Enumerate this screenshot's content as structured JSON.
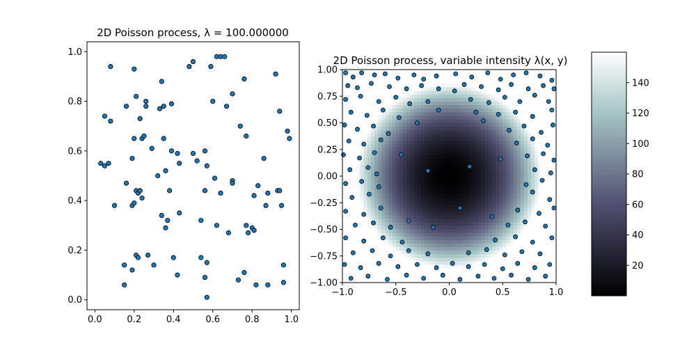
{
  "chart_data": [
    {
      "type": "scatter",
      "title": "2D Poisson process, λ = 100.000000",
      "xlim": [
        -0.04,
        1.04
      ],
      "ylim": [
        -0.04,
        1.04
      ],
      "x_ticks": [
        "0.0",
        "0.2",
        "0.4",
        "0.6",
        "0.8",
        "1.0"
      ],
      "y_ticks": [
        "0.0",
        "0.2",
        "0.4",
        "0.6",
        "0.8",
        "1.0"
      ],
      "marker_color": "#1f77b4",
      "marker_edge": "#000000",
      "points": [
        [
          0.03,
          0.55
        ],
        [
          0.05,
          0.74
        ],
        [
          0.05,
          0.54
        ],
        [
          0.07,
          0.55
        ],
        [
          0.08,
          0.94
        ],
        [
          0.08,
          0.72
        ],
        [
          0.1,
          0.38
        ],
        [
          0.15,
          0.14
        ],
        [
          0.15,
          0.06
        ],
        [
          0.16,
          0.78
        ],
        [
          0.16,
          0.47
        ],
        [
          0.19,
          0.57
        ],
        [
          0.19,
          0.38
        ],
        [
          0.19,
          0.12
        ],
        [
          0.2,
          0.93
        ],
        [
          0.2,
          0.39
        ],
        [
          0.2,
          0.65
        ],
        [
          0.21,
          0.82
        ],
        [
          0.21,
          0.44
        ],
        [
          0.21,
          0.18
        ],
        [
          0.22,
          0.43
        ],
        [
          0.22,
          0.17
        ],
        [
          0.23,
          0.73
        ],
        [
          0.23,
          0.44
        ],
        [
          0.24,
          0.65
        ],
        [
          0.24,
          0.41
        ],
        [
          0.25,
          0.66
        ],
        [
          0.26,
          0.78
        ],
        [
          0.26,
          0.8
        ],
        [
          0.27,
          0.18
        ],
        [
          0.29,
          0.61
        ],
        [
          0.3,
          0.14
        ],
        [
          0.32,
          0.5
        ],
        [
          0.33,
          0.77
        ],
        [
          0.34,
          0.88
        ],
        [
          0.34,
          0.34
        ],
        [
          0.35,
          0.78
        ],
        [
          0.35,
          0.65
        ],
        [
          0.36,
          0.52
        ],
        [
          0.36,
          0.29
        ],
        [
          0.37,
          0.32
        ],
        [
          0.38,
          0.44
        ],
        [
          0.39,
          0.79
        ],
        [
          0.39,
          0.6
        ],
        [
          0.4,
          0.17
        ],
        [
          0.42,
          0.59
        ],
        [
          0.42,
          0.1
        ],
        [
          0.43,
          0.55
        ],
        [
          0.43,
          0.35
        ],
        [
          0.48,
          0.94
        ],
        [
          0.5,
          0.96
        ],
        [
          0.5,
          0.59
        ],
        [
          0.52,
          0.56
        ],
        [
          0.54,
          0.32
        ],
        [
          0.54,
          0.17
        ],
        [
          0.56,
          0.6
        ],
        [
          0.56,
          0.44
        ],
        [
          0.56,
          0.09
        ],
        [
          0.57,
          0.54
        ],
        [
          0.57,
          0.15
        ],
        [
          0.57,
          0.01
        ],
        [
          0.59,
          0.94
        ],
        [
          0.6,
          0.8
        ],
        [
          0.61,
          0.49
        ],
        [
          0.62,
          0.98
        ],
        [
          0.62,
          0.3
        ],
        [
          0.64,
          0.43
        ],
        [
          0.64,
          0.98
        ],
        [
          0.66,
          0.98
        ],
        [
          0.67,
          0.78
        ],
        [
          0.68,
          0.27
        ],
        [
          0.7,
          0.83
        ],
        [
          0.7,
          0.48
        ],
        [
          0.7,
          0.47
        ],
        [
          0.73,
          0.08
        ],
        [
          0.74,
          0.7
        ],
        [
          0.76,
          0.89
        ],
        [
          0.76,
          0.11
        ],
        [
          0.77,
          0.66
        ],
        [
          0.77,
          0.3
        ],
        [
          0.78,
          0.27
        ],
        [
          0.8,
          0.29
        ],
        [
          0.81,
          0.42
        ],
        [
          0.81,
          0.28
        ],
        [
          0.82,
          0.06
        ],
        [
          0.83,
          0.46
        ],
        [
          0.86,
          0.57
        ],
        [
          0.87,
          0.38
        ],
        [
          0.88,
          0.43
        ],
        [
          0.88,
          0.06
        ],
        [
          0.92,
          0.91
        ],
        [
          0.93,
          0.44
        ],
        [
          0.94,
          0.44
        ],
        [
          0.94,
          0.76
        ],
        [
          0.95,
          0.38
        ],
        [
          0.96,
          0.14
        ],
        [
          0.96,
          0.07
        ],
        [
          0.98,
          0.68
        ],
        [
          0.99,
          0.65
        ]
      ]
    },
    {
      "type": "heatmap",
      "title": "2D Poisson process, variable intensity λ(x, y)",
      "colormap": "bone",
      "xlim": [
        -1.0,
        1.0
      ],
      "ylim": [
        -1.0,
        1.0
      ],
      "x_ticks": [
        "−1.0",
        "−0.5",
        "0.0",
        "0.5",
        "1.0"
      ],
      "y_ticks": [
        "1.00",
        "0.75",
        "0.50",
        "0.25",
        "0.00",
        "−0.25",
        "−0.50",
        "−0.75",
        "−1.00"
      ],
      "intensity_max": 160,
      "colorbar_ticks": [
        "140",
        "120",
        "100",
        "80",
        "60",
        "40",
        "20"
      ],
      "colorbar_range": [
        0,
        160
      ],
      "marker_color": "#1f77b4",
      "marker_edge": "#000000",
      "points": [
        [
          -0.97,
          0.97
        ],
        [
          -0.9,
          0.93
        ],
        [
          -0.82,
          0.97
        ],
        [
          -0.7,
          0.95
        ],
        [
          -0.6,
          0.96
        ],
        [
          -0.48,
          0.92
        ],
        [
          -0.33,
          0.95
        ],
        [
          -0.24,
          0.91
        ],
        [
          -0.12,
          0.94
        ],
        [
          0.06,
          0.96
        ],
        [
          0.21,
          0.93
        ],
        [
          0.36,
          0.97
        ],
        [
          0.48,
          0.91
        ],
        [
          0.6,
          0.95
        ],
        [
          0.72,
          0.97
        ],
        [
          0.85,
          0.94
        ],
        [
          0.96,
          0.9
        ],
        [
          -0.95,
          0.85
        ],
        [
          -0.86,
          0.83
        ],
        [
          -0.73,
          0.87
        ],
        [
          -0.56,
          0.84
        ],
        [
          -0.4,
          0.82
        ],
        [
          -0.26,
          0.85
        ],
        [
          -0.1,
          0.82
        ],
        [
          0.05,
          0.8
        ],
        [
          0.14,
          0.86
        ],
        [
          0.3,
          0.84
        ],
        [
          0.46,
          0.81
        ],
        [
          0.58,
          0.86
        ],
        [
          0.74,
          0.82
        ],
        [
          0.88,
          0.85
        ],
        [
          0.98,
          0.82
        ],
        [
          -0.97,
          0.72
        ],
        [
          -0.83,
          0.75
        ],
        [
          -0.66,
          0.7
        ],
        [
          -0.5,
          0.74
        ],
        [
          -0.37,
          0.68
        ],
        [
          -0.2,
          0.7
        ],
        [
          0.2,
          0.72
        ],
        [
          0.37,
          0.69
        ],
        [
          0.52,
          0.74
        ],
        [
          0.66,
          0.7
        ],
        [
          0.8,
          0.76
        ],
        [
          0.93,
          0.7
        ],
        [
          -0.92,
          0.6
        ],
        [
          -0.77,
          0.57
        ],
        [
          -0.62,
          0.62
        ],
        [
          -0.47,
          0.55
        ],
        [
          0.46,
          0.58
        ],
        [
          0.62,
          0.6
        ],
        [
          0.78,
          0.56
        ],
        [
          0.96,
          0.62
        ],
        [
          -0.98,
          0.48
        ],
        [
          -0.86,
          0.44
        ],
        [
          -0.71,
          0.47
        ],
        [
          -0.57,
          0.4
        ],
        [
          0.56,
          0.43
        ],
        [
          0.7,
          0.47
        ],
        [
          0.86,
          0.41
        ],
        [
          0.97,
          0.48
        ],
        [
          -0.94,
          0.33
        ],
        [
          -0.8,
          0.3
        ],
        [
          -0.64,
          0.34
        ],
        [
          0.63,
          0.31
        ],
        [
          0.78,
          0.35
        ],
        [
          0.92,
          0.29
        ],
        [
          -0.99,
          0.2
        ],
        [
          -0.84,
          0.17
        ],
        [
          -0.7,
          0.22
        ],
        [
          0.73,
          0.19
        ],
        [
          0.88,
          0.21
        ],
        [
          0.98,
          0.15
        ],
        [
          -0.93,
          0.06
        ],
        [
          -0.76,
          0.08
        ],
        [
          -0.68,
          0.02
        ],
        [
          0.8,
          0.06
        ],
        [
          0.95,
          0.03
        ],
        [
          -0.97,
          -0.07
        ],
        [
          -0.82,
          -0.05
        ],
        [
          -0.66,
          -0.1
        ],
        [
          0.72,
          -0.08
        ],
        [
          0.87,
          -0.04
        ],
        [
          -0.91,
          -0.2
        ],
        [
          -0.75,
          -0.17
        ],
        [
          0.78,
          -0.15
        ],
        [
          0.94,
          -0.22
        ],
        [
          -0.97,
          -0.33
        ],
        [
          -0.8,
          -0.36
        ],
        [
          -0.64,
          -0.3
        ],
        [
          0.64,
          -0.32
        ],
        [
          0.84,
          -0.35
        ],
        [
          0.98,
          -0.3
        ],
        [
          -0.88,
          -0.46
        ],
        [
          -0.71,
          -0.44
        ],
        [
          -0.55,
          -0.48
        ],
        [
          0.55,
          -0.46
        ],
        [
          0.71,
          -0.43
        ],
        [
          0.9,
          -0.47
        ],
        [
          -0.97,
          -0.58
        ],
        [
          -0.8,
          -0.61
        ],
        [
          -0.62,
          -0.58
        ],
        [
          -0.44,
          -0.62
        ],
        [
          0.43,
          -0.6
        ],
        [
          0.62,
          -0.57
        ],
        [
          0.78,
          -0.62
        ],
        [
          0.96,
          -0.58
        ],
        [
          -0.9,
          -0.72
        ],
        [
          -0.72,
          -0.7
        ],
        [
          -0.55,
          -0.75
        ],
        [
          -0.38,
          -0.7
        ],
        [
          -0.2,
          -0.73
        ],
        [
          0.18,
          -0.72
        ],
        [
          0.35,
          -0.69
        ],
        [
          0.52,
          -0.74
        ],
        [
          0.68,
          -0.71
        ],
        [
          0.85,
          -0.73
        ],
        [
          -0.98,
          -0.83
        ],
        [
          -0.83,
          -0.86
        ],
        [
          -0.66,
          -0.82
        ],
        [
          -0.48,
          -0.85
        ],
        [
          -0.3,
          -0.83
        ],
        [
          -0.12,
          -0.86
        ],
        [
          0.03,
          -0.82
        ],
        [
          0.18,
          -0.85
        ],
        [
          0.33,
          -0.83
        ],
        [
          0.5,
          -0.87
        ],
        [
          0.64,
          -0.82
        ],
        [
          0.8,
          -0.86
        ],
        [
          0.94,
          -0.83
        ],
        [
          -0.92,
          -0.96
        ],
        [
          -0.76,
          -0.94
        ],
        [
          -0.58,
          -0.97
        ],
        [
          -0.4,
          -0.93
        ],
        [
          -0.24,
          -0.96
        ],
        [
          -0.06,
          -0.93
        ],
        [
          0.1,
          -0.97
        ],
        [
          0.27,
          -0.94
        ],
        [
          0.42,
          -0.96
        ],
        [
          0.58,
          -0.93
        ],
        [
          0.74,
          -0.97
        ],
        [
          0.9,
          -0.94
        ],
        [
          -0.3,
          0.5
        ],
        [
          0.32,
          0.52
        ],
        [
          -0.45,
          0.2
        ],
        [
          0.48,
          0.16
        ],
        [
          -0.38,
          -0.42
        ],
        [
          0.4,
          -0.38
        ],
        [
          -0.2,
          0.05
        ],
        [
          0.19,
          0.09
        ],
        [
          0.1,
          -0.3
        ],
        [
          -0.15,
          -0.48
        ],
        [
          0.25,
          0.6
        ],
        [
          -0.1,
          0.62
        ]
      ]
    }
  ]
}
